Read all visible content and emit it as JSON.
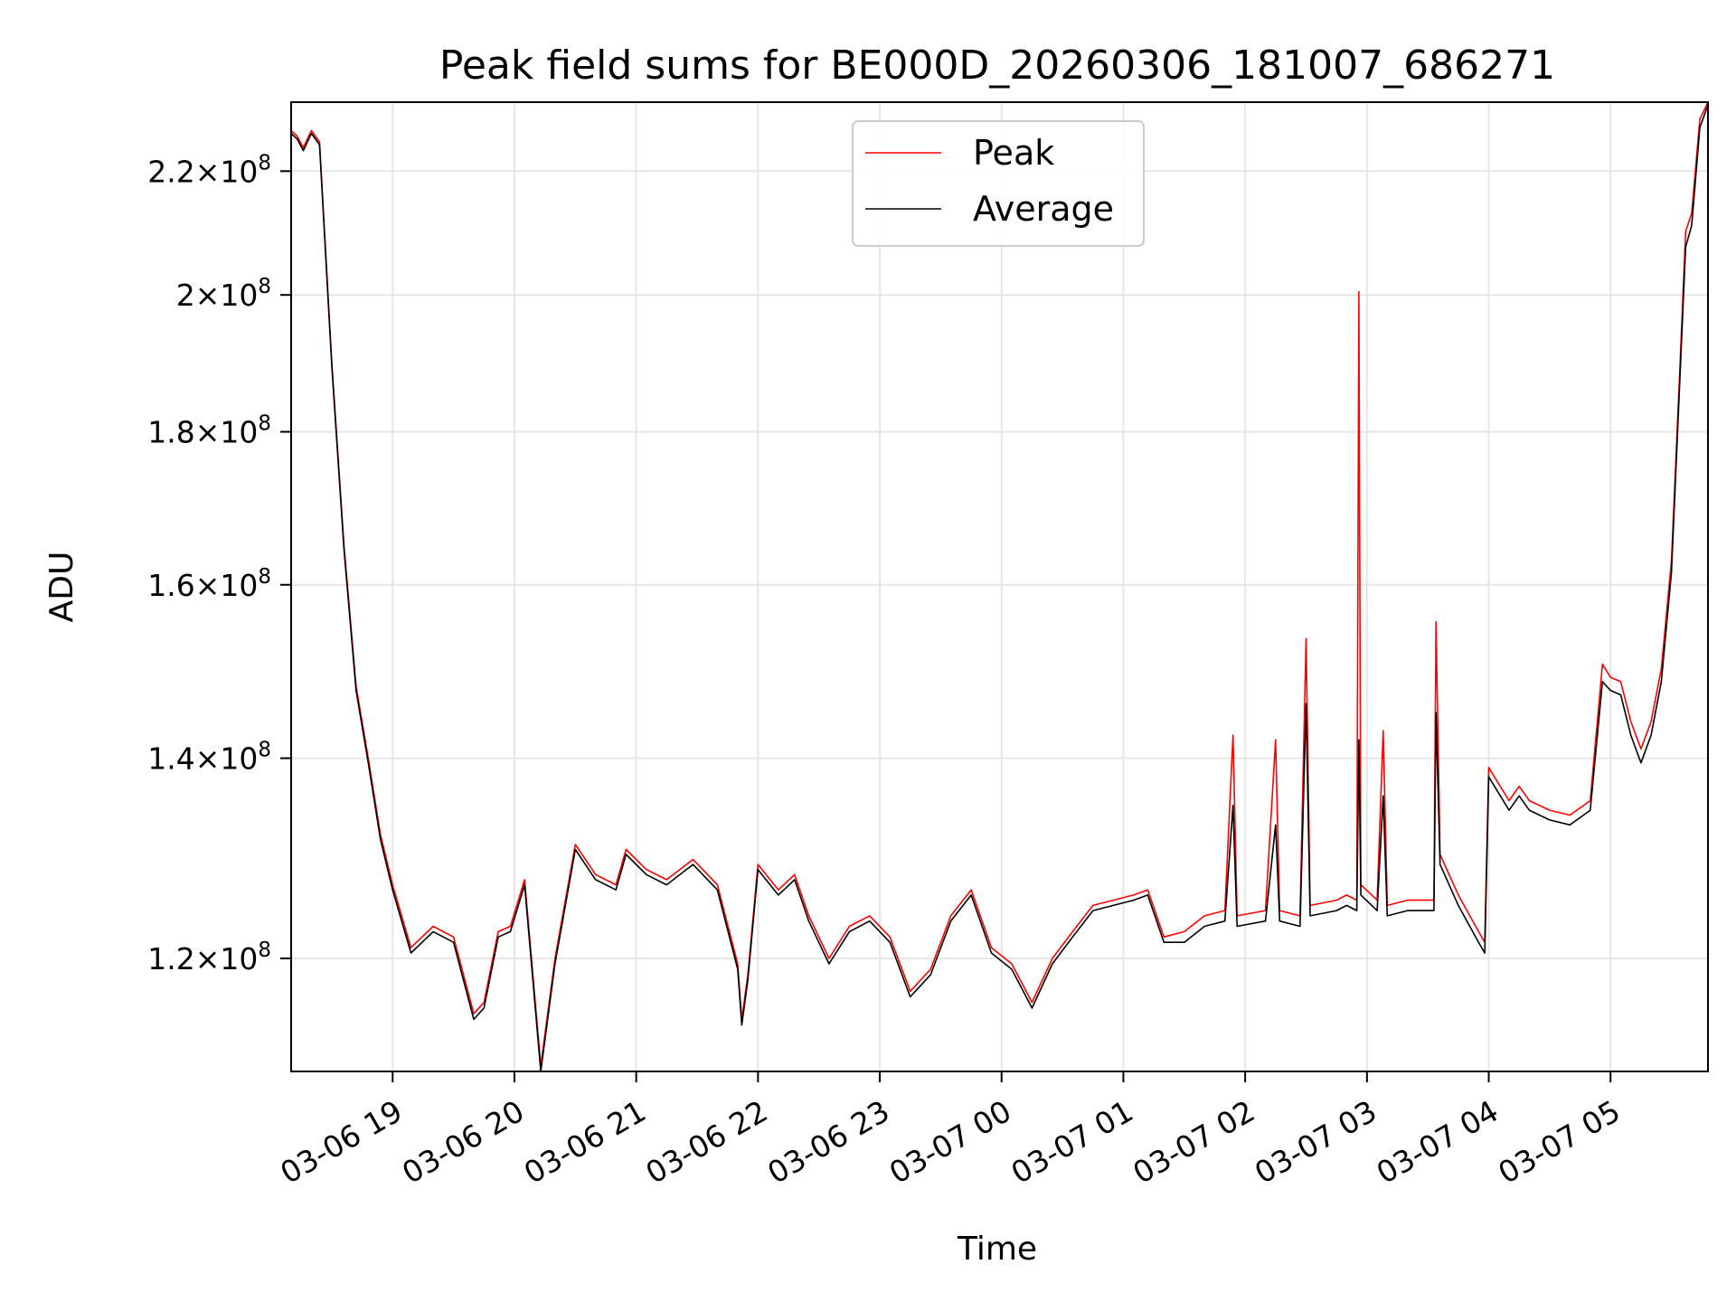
{
  "chart_data": {
    "type": "line",
    "title": "Peak field sums for BE000D_20260306_181007_686271",
    "xlabel": "Time",
    "ylabel": "ADU",
    "x_range": [
      "2026-03-06 18:10",
      "2026-03-07 05:48"
    ],
    "ylim": [
      110000000,
      232000000
    ],
    "y_scale": "log",
    "grid": true,
    "legend_position": "upper center",
    "x_ticks": [
      "03-06 19",
      "03-06 20",
      "03-06 21",
      "03-06 22",
      "03-06 23",
      "03-07 00",
      "03-07 01",
      "03-07 02",
      "03-07 03",
      "03-07 04",
      "03-07 05"
    ],
    "y_ticks": [
      {
        "value": 120000000,
        "mant": "1.2",
        "exp": "8"
      },
      {
        "value": 140000000,
        "mant": "1.4",
        "exp": "8"
      },
      {
        "value": 160000000,
        "mant": "1.6",
        "exp": "8"
      },
      {
        "value": 180000000,
        "mant": "1.8",
        "exp": "8"
      },
      {
        "value": 200000000,
        "mant": "2",
        "exp": "8"
      },
      {
        "value": 220000000,
        "mant": "2.2",
        "exp": "8"
      }
    ],
    "y_tick_prefix": "×10",
    "series": [
      {
        "name": "Peak",
        "color": "#ff0000",
        "points": [
          [
            "2026-03-06 18:10",
            227000000
          ],
          [
            "2026-03-06 18:13",
            226000000
          ],
          [
            "2026-03-06 18:16",
            224000000
          ],
          [
            "2026-03-06 18:20",
            227000000
          ],
          [
            "2026-03-06 18:24",
            225000000
          ],
          [
            "2026-03-06 18:30",
            190000000
          ],
          [
            "2026-03-06 18:36",
            165000000
          ],
          [
            "2026-03-06 18:42",
            148000000
          ],
          [
            "2026-03-06 18:48",
            140000000
          ],
          [
            "2026-03-06 18:54",
            132000000
          ],
          [
            "2026-03-06 19:00",
            127000000
          ],
          [
            "2026-03-06 19:09",
            121000000
          ],
          [
            "2026-03-06 19:20",
            123000000
          ],
          [
            "2026-03-06 19:30",
            122000000
          ],
          [
            "2026-03-06 19:40",
            115000000
          ],
          [
            "2026-03-06 19:45",
            116000000
          ],
          [
            "2026-03-06 19:52",
            122500000
          ],
          [
            "2026-03-06 19:58",
            123000000
          ],
          [
            "2026-03-06 20:05",
            127500000
          ],
          [
            "2026-03-06 20:13",
            110500000
          ],
          [
            "2026-03-06 20:20",
            120000000
          ],
          [
            "2026-03-06 20:30",
            131000000
          ],
          [
            "2026-03-06 20:40",
            128000000
          ],
          [
            "2026-03-06 20:50",
            127000000
          ],
          [
            "2026-03-06 20:55",
            130500000
          ],
          [
            "2026-03-06 21:05",
            128500000
          ],
          [
            "2026-03-06 21:15",
            127500000
          ],
          [
            "2026-03-06 21:28",
            129500000
          ],
          [
            "2026-03-06 21:40",
            127000000
          ],
          [
            "2026-03-06 21:50",
            119500000
          ],
          [
            "2026-03-06 21:52",
            114500000
          ],
          [
            "2026-03-06 21:55",
            118500000
          ],
          [
            "2026-03-06 22:00",
            129000000
          ],
          [
            "2026-03-06 22:10",
            126500000
          ],
          [
            "2026-03-06 22:18",
            128000000
          ],
          [
            "2026-03-06 22:25",
            124000000
          ],
          [
            "2026-03-06 22:35",
            120000000
          ],
          [
            "2026-03-06 22:45",
            123000000
          ],
          [
            "2026-03-06 22:55",
            124000000
          ],
          [
            "2026-03-06 23:05",
            122000000
          ],
          [
            "2026-03-06 23:15",
            117000000
          ],
          [
            "2026-03-06 23:25",
            119000000
          ],
          [
            "2026-03-06 23:35",
            124000000
          ],
          [
            "2026-03-06 23:45",
            126500000
          ],
          [
            "2026-03-06 23:55",
            121000000
          ],
          [
            "2026-03-07 00:05",
            119500000
          ],
          [
            "2026-03-07 00:15",
            116000000
          ],
          [
            "2026-03-07 00:25",
            120000000
          ],
          [
            "2026-03-07 00:35",
            122500000
          ],
          [
            "2026-03-07 00:45",
            125000000
          ],
          [
            "2026-03-07 00:55",
            125500000
          ],
          [
            "2026-03-07 01:05",
            126000000
          ],
          [
            "2026-03-07 01:12",
            126500000
          ],
          [
            "2026-03-07 01:20",
            122000000
          ],
          [
            "2026-03-07 01:30",
            122500000
          ],
          [
            "2026-03-07 01:40",
            124000000
          ],
          [
            "2026-03-07 01:50",
            124500000
          ],
          [
            "2026-03-07 01:54",
            142500000
          ],
          [
            "2026-03-07 01:56",
            124000000
          ],
          [
            "2026-03-07 02:10",
            124500000
          ],
          [
            "2026-03-07 02:15",
            142000000
          ],
          [
            "2026-03-07 02:17",
            124500000
          ],
          [
            "2026-03-07 02:27",
            124000000
          ],
          [
            "2026-03-07 02:30",
            153500000
          ],
          [
            "2026-03-07 02:32",
            125000000
          ],
          [
            "2026-03-07 02:45",
            125500000
          ],
          [
            "2026-03-07 02:50",
            126000000
          ],
          [
            "2026-03-07 02:55",
            125500000
          ],
          [
            "2026-03-07 02:56",
            200500000
          ],
          [
            "2026-03-07 02:57",
            127000000
          ],
          [
            "2026-03-07 03:05",
            125500000
          ],
          [
            "2026-03-07 03:08",
            143000000
          ],
          [
            "2026-03-07 03:10",
            125000000
          ],
          [
            "2026-03-07 03:20",
            125500000
          ],
          [
            "2026-03-07 03:33",
            125500000
          ],
          [
            "2026-03-07 03:34",
            155500000
          ],
          [
            "2026-03-07 03:36",
            130000000
          ],
          [
            "2026-03-07 03:45",
            126000000
          ],
          [
            "2026-03-07 03:55",
            122500000
          ],
          [
            "2026-03-07 03:58",
            121500000
          ],
          [
            "2026-03-07 04:00",
            139000000
          ],
          [
            "2026-03-07 04:10",
            135500000
          ],
          [
            "2026-03-07 04:15",
            137000000
          ],
          [
            "2026-03-07 04:20",
            135500000
          ],
          [
            "2026-03-07 04:30",
            134500000
          ],
          [
            "2026-03-07 04:40",
            134000000
          ],
          [
            "2026-03-07 04:50",
            135500000
          ],
          [
            "2026-03-07 04:56",
            150500000
          ],
          [
            "2026-03-07 05:00",
            149000000
          ],
          [
            "2026-03-07 05:05",
            148500000
          ],
          [
            "2026-03-07 05:10",
            144000000
          ],
          [
            "2026-03-07 05:15",
            141000000
          ],
          [
            "2026-03-07 05:20",
            144000000
          ],
          [
            "2026-03-07 05:25",
            150000000
          ],
          [
            "2026-03-07 05:30",
            163000000
          ],
          [
            "2026-03-07 05:34",
            188000000
          ],
          [
            "2026-03-07 05:37",
            210000000
          ],
          [
            "2026-03-07 05:40",
            213000000
          ],
          [
            "2026-03-07 05:44",
            229000000
          ],
          [
            "2026-03-07 05:48",
            232000000
          ]
        ]
      },
      {
        "name": "Average",
        "color": "#000000",
        "points": [
          [
            "2026-03-06 18:10",
            226500000
          ],
          [
            "2026-03-06 18:13",
            225500000
          ],
          [
            "2026-03-06 18:16",
            223500000
          ],
          [
            "2026-03-06 18:20",
            226500000
          ],
          [
            "2026-03-06 18:24",
            224500000
          ],
          [
            "2026-03-06 18:30",
            189500000
          ],
          [
            "2026-03-06 18:36",
            164500000
          ],
          [
            "2026-03-06 18:42",
            147500000
          ],
          [
            "2026-03-06 18:48",
            139500000
          ],
          [
            "2026-03-06 18:54",
            131500000
          ],
          [
            "2026-03-06 19:00",
            126500000
          ],
          [
            "2026-03-06 19:09",
            120500000
          ],
          [
            "2026-03-06 19:20",
            122500000
          ],
          [
            "2026-03-06 19:30",
            121500000
          ],
          [
            "2026-03-06 19:40",
            114500000
          ],
          [
            "2026-03-06 19:45",
            115500000
          ],
          [
            "2026-03-06 19:52",
            122000000
          ],
          [
            "2026-03-06 19:58",
            122500000
          ],
          [
            "2026-03-06 20:05",
            127000000
          ],
          [
            "2026-03-06 20:13",
            110000000
          ],
          [
            "2026-03-06 20:20",
            119500000
          ],
          [
            "2026-03-06 20:30",
            130500000
          ],
          [
            "2026-03-06 20:40",
            127500000
          ],
          [
            "2026-03-06 20:50",
            126500000
          ],
          [
            "2026-03-06 20:55",
            130000000
          ],
          [
            "2026-03-06 21:05",
            128000000
          ],
          [
            "2026-03-06 21:15",
            127000000
          ],
          [
            "2026-03-06 21:28",
            129000000
          ],
          [
            "2026-03-06 21:40",
            126500000
          ],
          [
            "2026-03-06 21:50",
            119000000
          ],
          [
            "2026-03-06 21:52",
            114000000
          ],
          [
            "2026-03-06 21:55",
            118000000
          ],
          [
            "2026-03-06 22:00",
            128500000
          ],
          [
            "2026-03-06 22:10",
            126000000
          ],
          [
            "2026-03-06 22:18",
            127500000
          ],
          [
            "2026-03-06 22:25",
            123500000
          ],
          [
            "2026-03-06 22:35",
            119500000
          ],
          [
            "2026-03-06 22:45",
            122500000
          ],
          [
            "2026-03-06 22:55",
            123500000
          ],
          [
            "2026-03-06 23:05",
            121500000
          ],
          [
            "2026-03-06 23:15",
            116500000
          ],
          [
            "2026-03-06 23:25",
            118500000
          ],
          [
            "2026-03-06 23:35",
            123500000
          ],
          [
            "2026-03-06 23:45",
            126000000
          ],
          [
            "2026-03-06 23:55",
            120500000
          ],
          [
            "2026-03-07 00:05",
            119000000
          ],
          [
            "2026-03-07 00:15",
            115500000
          ],
          [
            "2026-03-07 00:25",
            119500000
          ],
          [
            "2026-03-07 00:35",
            122000000
          ],
          [
            "2026-03-07 00:45",
            124500000
          ],
          [
            "2026-03-07 00:55",
            125000000
          ],
          [
            "2026-03-07 01:05",
            125500000
          ],
          [
            "2026-03-07 01:12",
            126000000
          ],
          [
            "2026-03-07 01:20",
            121500000
          ],
          [
            "2026-03-07 01:30",
            121500000
          ],
          [
            "2026-03-07 01:40",
            123000000
          ],
          [
            "2026-03-07 01:50",
            123500000
          ],
          [
            "2026-03-07 01:54",
            135000000
          ],
          [
            "2026-03-07 01:56",
            123000000
          ],
          [
            "2026-03-07 02:10",
            123500000
          ],
          [
            "2026-03-07 02:15",
            133000000
          ],
          [
            "2026-03-07 02:17",
            123500000
          ],
          [
            "2026-03-07 02:27",
            123000000
          ],
          [
            "2026-03-07 02:30",
            146000000
          ],
          [
            "2026-03-07 02:32",
            124000000
          ],
          [
            "2026-03-07 02:45",
            124500000
          ],
          [
            "2026-03-07 02:50",
            125000000
          ],
          [
            "2026-03-07 02:55",
            124500000
          ],
          [
            "2026-03-07 02:56",
            142000000
          ],
          [
            "2026-03-07 02:57",
            126000000
          ],
          [
            "2026-03-07 03:05",
            124500000
          ],
          [
            "2026-03-07 03:08",
            136000000
          ],
          [
            "2026-03-07 03:10",
            124000000
          ],
          [
            "2026-03-07 03:20",
            124500000
          ],
          [
            "2026-03-07 03:33",
            124500000
          ],
          [
            "2026-03-07 03:34",
            145000000
          ],
          [
            "2026-03-07 03:36",
            129000000
          ],
          [
            "2026-03-07 03:45",
            125000000
          ],
          [
            "2026-03-07 03:55",
            121500000
          ],
          [
            "2026-03-07 03:58",
            120500000
          ],
          [
            "2026-03-07 04:00",
            138000000
          ],
          [
            "2026-03-07 04:10",
            134500000
          ],
          [
            "2026-03-07 04:15",
            136000000
          ],
          [
            "2026-03-07 04:20",
            134500000
          ],
          [
            "2026-03-07 04:30",
            133500000
          ],
          [
            "2026-03-07 04:40",
            133000000
          ],
          [
            "2026-03-07 04:50",
            134500000
          ],
          [
            "2026-03-07 04:56",
            148500000
          ],
          [
            "2026-03-07 05:00",
            147500000
          ],
          [
            "2026-03-07 05:05",
            147000000
          ],
          [
            "2026-03-07 05:10",
            142500000
          ],
          [
            "2026-03-07 05:15",
            139500000
          ],
          [
            "2026-03-07 05:20",
            142500000
          ],
          [
            "2026-03-07 05:25",
            148500000
          ],
          [
            "2026-03-07 05:30",
            161500000
          ],
          [
            "2026-03-07 05:34",
            186500000
          ],
          [
            "2026-03-07 05:37",
            207500000
          ],
          [
            "2026-03-07 05:40",
            211000000
          ],
          [
            "2026-03-07 05:44",
            227500000
          ],
          [
            "2026-03-07 05:48",
            231500000
          ]
        ]
      }
    ]
  }
}
